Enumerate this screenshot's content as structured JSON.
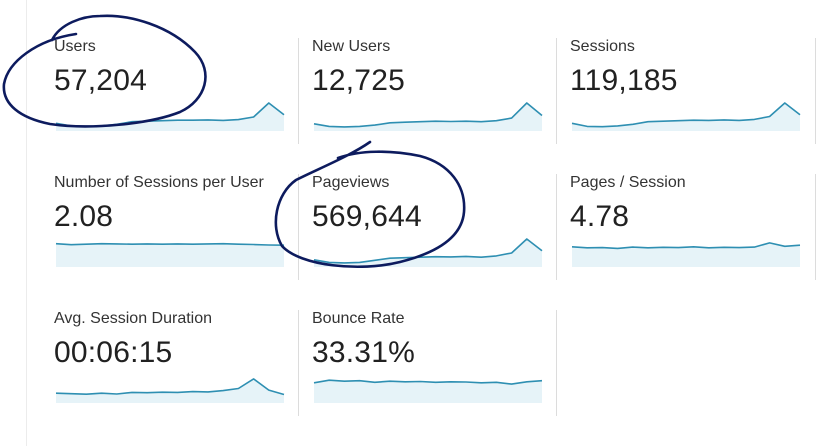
{
  "metrics": [
    {
      "label": "Users",
      "value": "57,204",
      "sparkline": [
        0.22,
        0.12,
        0.1,
        0.12,
        0.18,
        0.28,
        0.3,
        0.32,
        0.34,
        0.34,
        0.35,
        0.33,
        0.36,
        0.46,
        1.0,
        0.55
      ]
    },
    {
      "label": "New Users",
      "value": "12,725",
      "sparkline": [
        0.2,
        0.1,
        0.08,
        0.1,
        0.15,
        0.24,
        0.26,
        0.28,
        0.3,
        0.29,
        0.3,
        0.28,
        0.32,
        0.42,
        1.0,
        0.52
      ]
    },
    {
      "label": "Sessions",
      "value": "119,185",
      "sparkline": [
        0.22,
        0.1,
        0.09,
        0.12,
        0.18,
        0.28,
        0.3,
        0.32,
        0.34,
        0.33,
        0.35,
        0.33,
        0.37,
        0.48,
        1.0,
        0.55
      ]
    },
    {
      "label": "Number of Sessions per User",
      "value": "2.08",
      "sparkline": [
        0.82,
        0.78,
        0.8,
        0.82,
        0.81,
        0.8,
        0.81,
        0.8,
        0.81,
        0.8,
        0.81,
        0.82,
        0.8,
        0.79,
        0.77,
        0.76
      ]
    },
    {
      "label": "Pageviews",
      "value": "569,644",
      "sparkline": [
        0.2,
        0.1,
        0.08,
        0.1,
        0.18,
        0.26,
        0.28,
        0.3,
        0.32,
        0.31,
        0.33,
        0.3,
        0.35,
        0.46,
        1.0,
        0.55
      ]
    },
    {
      "label": "Pages / Session",
      "value": "4.78",
      "sparkline": [
        0.7,
        0.66,
        0.67,
        0.64,
        0.69,
        0.66,
        0.68,
        0.67,
        0.7,
        0.66,
        0.68,
        0.67,
        0.69,
        0.85,
        0.72,
        0.76
      ]
    },
    {
      "label": "Avg. Session Duration",
      "value": "00:06:15",
      "sparkline": [
        0.3,
        0.28,
        0.26,
        0.3,
        0.27,
        0.33,
        0.32,
        0.34,
        0.33,
        0.36,
        0.35,
        0.4,
        0.48,
        0.85,
        0.42,
        0.25
      ]
    },
    {
      "label": "Bounce Rate",
      "value": "33.31%",
      "sparkline": [
        0.7,
        0.8,
        0.76,
        0.78,
        0.72,
        0.76,
        0.74,
        0.75,
        0.72,
        0.74,
        0.73,
        0.7,
        0.72,
        0.65,
        0.74,
        0.78
      ]
    }
  ],
  "colors": {
    "sparkline_stroke": "#2e8fb2",
    "sparkline_fill": "#e6f3f8",
    "annotation_ink": "#0d1b5e",
    "divider": "#dcdcdc"
  }
}
